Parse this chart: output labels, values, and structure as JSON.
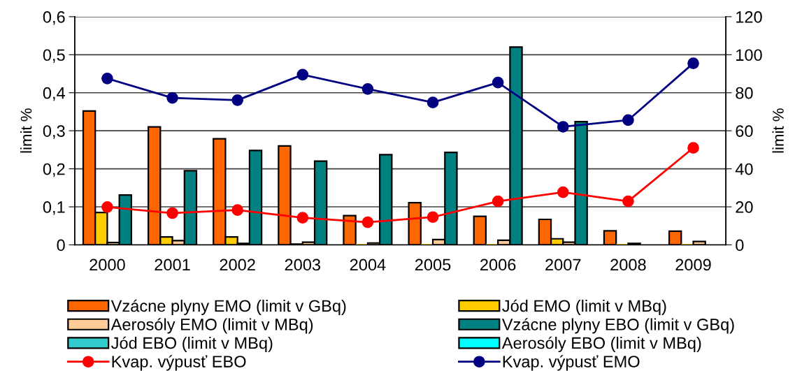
{
  "chart_data": {
    "type": "bar",
    "ylabel": "limit %",
    "y2label": "limit %",
    "categories": [
      "2000",
      "2001",
      "2002",
      "2003",
      "2004",
      "2005",
      "2006",
      "2007",
      "2008",
      "2009"
    ],
    "series": [
      {
        "name": "Vzácne plyny EMO (limit v GBq)",
        "color": "#ff6600",
        "values": [
          0.352,
          0.31,
          0.279,
          0.26,
          0.077,
          0.111,
          0.075,
          0.067,
          0.037,
          0.036
        ]
      },
      {
        "name": "Jód EMO (limit v MBq)",
        "color": "#ffcc00",
        "values": [
          0.085,
          0.021,
          0.021,
          0.002,
          0,
          0,
          0,
          0.016,
          0,
          0
        ]
      },
      {
        "name": "Aerosóly EMO (limit v MBq)",
        "color": "#ffcc99",
        "values": [
          0.006,
          0.011,
          0.004,
          0.007,
          0.005,
          0.014,
          0.012,
          0.007,
          0.004,
          0.009
        ]
      },
      {
        "name": "Vzácne plyny EBO (limit v GBq)",
        "color": "#008080",
        "values": [
          0.131,
          0.195,
          0.248,
          0.22,
          0.237,
          0.243,
          0.52,
          0.324,
          null,
          null
        ]
      },
      {
        "name": "Jód EBO (limit v MBq)",
        "color": "#33cccc",
        "values": [
          null,
          null,
          null,
          null,
          null,
          null,
          null,
          null,
          null,
          null
        ]
      },
      {
        "name": "Aerosóly EBO (limit v MBq)",
        "color": "#00ffff",
        "values": [
          null,
          null,
          null,
          null,
          null,
          null,
          null,
          null,
          null,
          null
        ]
      },
      {
        "name": "Kvap. výpusť EBO",
        "color": "#ff0000",
        "type": "line",
        "axis": "y2",
        "values": [
          19.9,
          16.7,
          18.3,
          14.3,
          11.9,
          14.6,
          22.9,
          27.7,
          22.9,
          51.0
        ]
      },
      {
        "name": "Kvap. výpusť EMO",
        "color": "#000080",
        "type": "line",
        "axis": "y2",
        "values": [
          87.5,
          77.3,
          76.1,
          89.5,
          82.0,
          74.9,
          85.4,
          62.1,
          65.6,
          95.5
        ]
      }
    ],
    "ylim": [
      0,
      0.6
    ],
    "yticks": [
      0,
      {
        "value": 0.1,
        "label": "0,1"
      },
      {
        "value": 0.2,
        "label": "0,2"
      },
      {
        "value": 0.3,
        "label": "0,3"
      },
      {
        "value": 0.4,
        "label": "0,4"
      },
      {
        "value": 0.5,
        "label": "0,5"
      },
      {
        "value": 0.6,
        "label": "0,6"
      }
    ],
    "y2lim": [
      0,
      120
    ],
    "y2ticks": [
      0,
      20,
      40,
      60,
      80,
      100,
      120
    ],
    "grid": "y",
    "legend": "bottom",
    "marker": "circle",
    "line_style": "solid"
  }
}
